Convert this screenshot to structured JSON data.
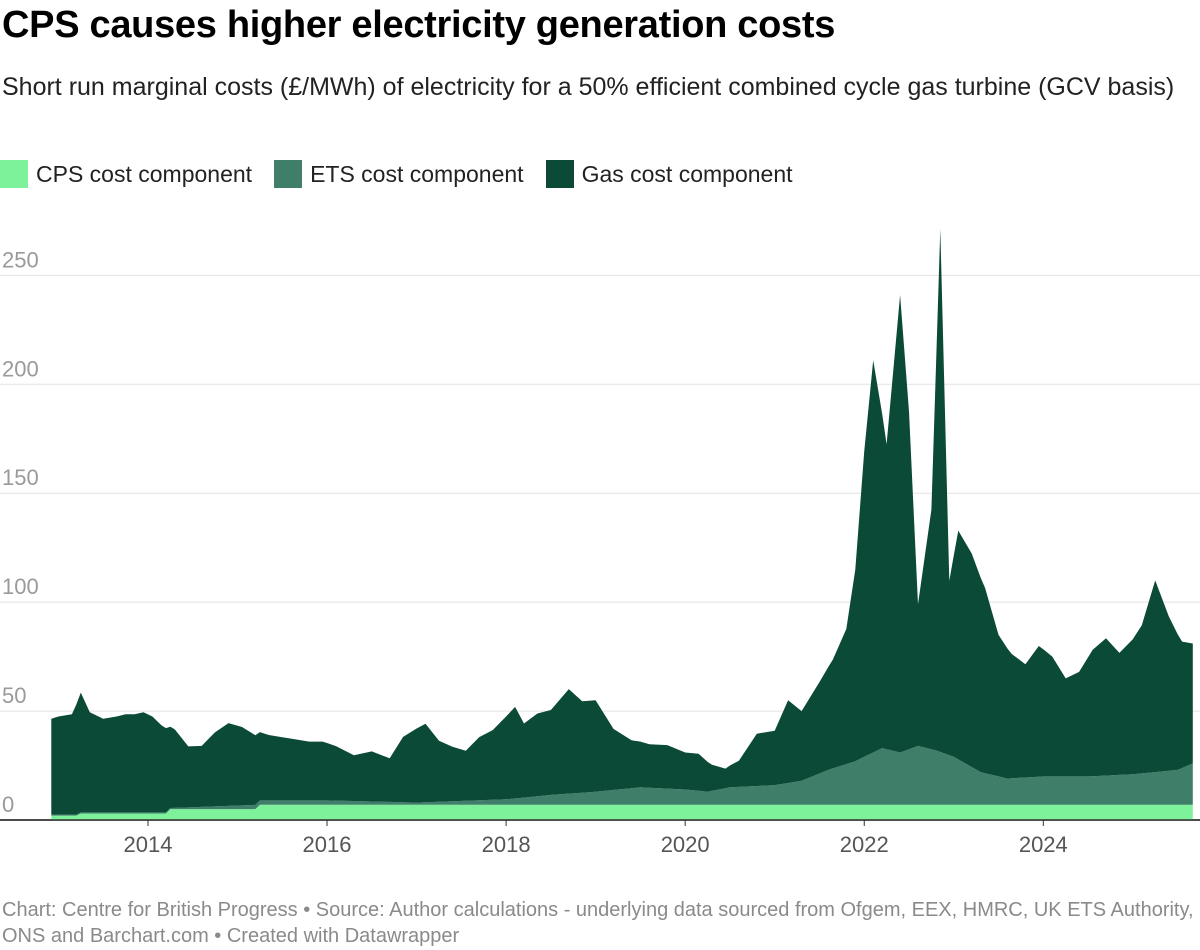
{
  "header": {
    "title": "CPS causes higher electricity generation costs",
    "subtitle": "Short run marginal costs (£/MWh) of electricity for a 50% efficient combined cycle gas turbine (GCV basis)"
  },
  "legend": [
    {
      "label": "CPS cost component",
      "color": "#7ef29a"
    },
    {
      "label": "ETS cost component",
      "color": "#3f7f69"
    },
    {
      "label": "Gas cost component",
      "color": "#0c4a38"
    }
  ],
  "footer": {
    "text": "Chart: Centre for British Progress • Source: Author calculations - underlying data sourced from Ofgem, EEX, HMRC, UK ETS Authority, ONS and Barchart.com • Created with Datawrapper"
  },
  "chart_data": {
    "type": "area",
    "stacked": true,
    "ylim": [
      0,
      280
    ],
    "yticks": [
      0,
      50,
      100,
      150,
      200,
      250
    ],
    "xlim": [
      2012.85,
      2025.75
    ],
    "xticks": [
      2014,
      2016,
      2018,
      2020,
      2022,
      2024
    ],
    "grid": true,
    "legend_position": "top-left",
    "series": [
      {
        "name": "CPS cost component",
        "color": "#7ef29a",
        "x": [
          2012.92,
          2013.2,
          2013.25,
          2013.7,
          2014.2,
          2014.25,
          2014.7,
          2015.2,
          2015.25,
          2025.67
        ],
        "values": [
          2,
          2,
          3,
          3,
          3,
          5,
          5,
          5,
          7,
          7
        ]
      },
      {
        "name": "ETS cost component",
        "color": "#3f7f69",
        "x": [
          2012.92,
          2013.5,
          2014.25,
          2015.25,
          2016.0,
          2017.0,
          2018.0,
          2018.5,
          2019.0,
          2019.5,
          2020.0,
          2020.25,
          2020.5,
          2021.0,
          2021.3,
          2021.6,
          2021.9,
          2022.2,
          2022.4,
          2022.6,
          2022.8,
          2023.0,
          2023.3,
          2023.6,
          2024.0,
          2024.5,
          2025.0,
          2025.5,
          2025.67
        ],
        "values": [
          0.5,
          0.5,
          0.5,
          2,
          2,
          1,
          2.5,
          4.5,
          6,
          8,
          7,
          6,
          8,
          9,
          11,
          16,
          20,
          26,
          24,
          27,
          25,
          22,
          15,
          12,
          13,
          13,
          14,
          16,
          19
        ]
      },
      {
        "name": "Gas cost component",
        "color": "#0c4a38",
        "x": [
          2012.92,
          2013.0,
          2013.15,
          2013.25,
          2013.35,
          2013.5,
          2013.65,
          2013.75,
          2013.85,
          2013.95,
          2014.05,
          2014.15,
          2014.3,
          2014.45,
          2014.6,
          2014.75,
          2014.9,
          2015.05,
          2015.2,
          2015.35,
          2015.5,
          2015.65,
          2015.8,
          2015.95,
          2016.1,
          2016.3,
          2016.5,
          2016.7,
          2016.85,
          2017.0,
          2017.1,
          2017.25,
          2017.4,
          2017.55,
          2017.7,
          2017.85,
          2018.0,
          2018.1,
          2018.2,
          2018.35,
          2018.5,
          2018.7,
          2018.85,
          2019.0,
          2019.2,
          2019.4,
          2019.6,
          2019.8,
          2020.0,
          2020.15,
          2020.3,
          2020.45,
          2020.6,
          2020.8,
          2021.0,
          2021.15,
          2021.3,
          2021.5,
          2021.65,
          2021.8,
          2021.9,
          2022.0,
          2022.1,
          2022.25,
          2022.4,
          2022.5,
          2022.6,
          2022.75,
          2022.85,
          2022.95,
          2023.05,
          2023.2,
          2023.35,
          2023.5,
          2023.65,
          2023.8,
          2023.95,
          2024.1,
          2024.25,
          2024.4,
          2024.55,
          2024.7,
          2024.85,
          2025.0,
          2025.1,
          2025.25,
          2025.4,
          2025.55,
          2025.67
        ],
        "values": [
          44,
          45,
          46,
          55,
          46,
          43,
          44,
          45,
          45,
          46,
          44,
          40,
          36,
          28,
          28,
          34,
          38,
          36,
          32,
          30,
          29,
          28,
          27,
          27,
          25,
          21,
          23,
          20,
          30,
          34,
          36,
          28,
          25,
          23,
          29,
          32,
          38,
          42,
          34,
          38,
          39,
          48,
          42,
          42,
          28,
          22,
          20,
          20,
          17,
          17,
          12,
          9,
          12,
          24,
          25,
          38,
          32,
          42,
          50,
          62,
          88,
          140,
          180,
          140,
          210,
          155,
          65,
          110,
          240,
          80,
          105,
          98,
          85,
          65,
          57,
          52,
          60,
          55,
          45,
          48,
          58,
          63,
          56,
          62,
          68,
          88,
          71,
          58,
          55
        ]
      }
    ]
  }
}
